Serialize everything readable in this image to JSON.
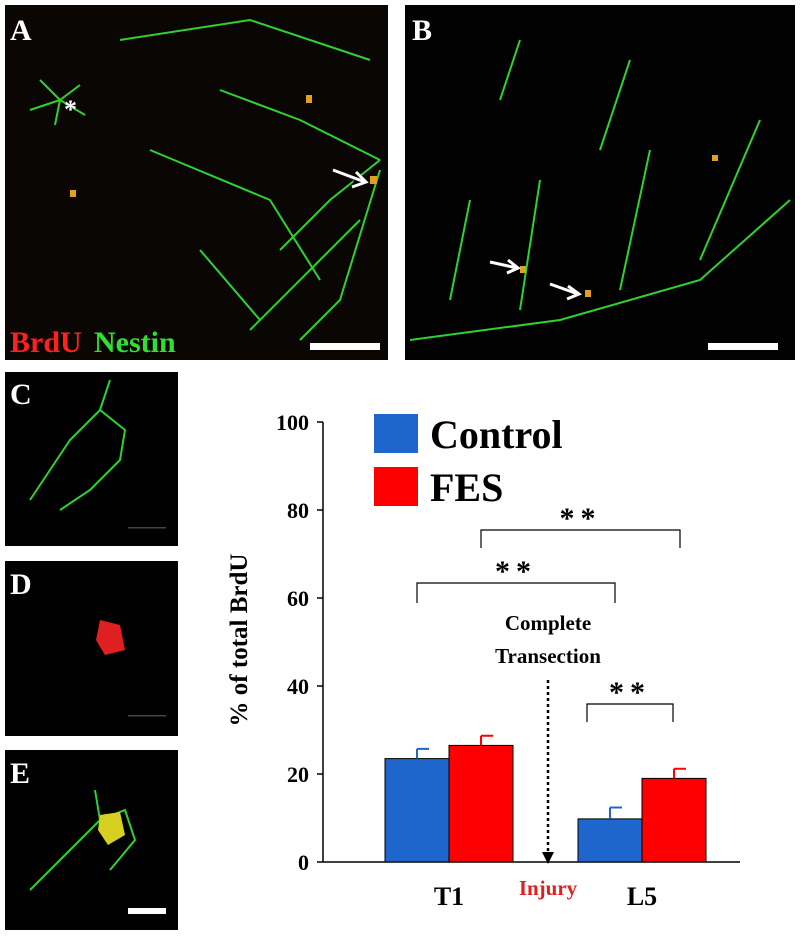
{
  "panels": {
    "A": "A",
    "B": "B",
    "C": "C",
    "D": "D",
    "E": "E",
    "asterisk": "*",
    "stain1": "BrdU",
    "stain2": "Nestin"
  },
  "chart_data": {
    "type": "bar",
    "ylabel": "% of total BrdU",
    "categories": [
      "T1",
      "L5"
    ],
    "series": [
      {
        "name": "Control",
        "color": "#1f66cc",
        "values": [
          23.5,
          9.8
        ],
        "errors": [
          2.2,
          2.6
        ]
      },
      {
        "name": "FES",
        "color": "#ff0000",
        "values": [
          26.5,
          19
        ],
        "errors": [
          2.2,
          2.2
        ]
      }
    ],
    "ylim": [
      0,
      100
    ],
    "yticks": [
      0,
      20,
      40,
      60,
      80,
      100
    ],
    "annotations": [
      "**",
      "**",
      "**",
      "Complete",
      "Transection",
      "Injury"
    ]
  }
}
